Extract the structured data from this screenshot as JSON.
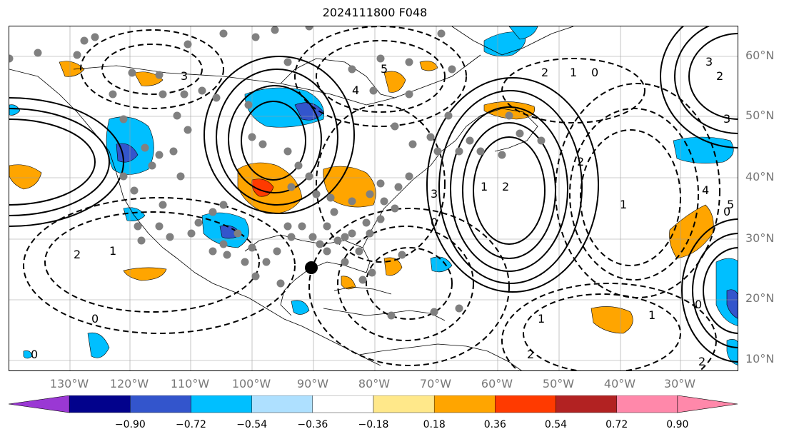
{
  "title": "2024111800 F048",
  "lat_labels": [
    "60°N",
    "50°N",
    "40°N",
    "30°N",
    "20°N",
    "10°N"
  ],
  "lon_labels": [
    "130°W",
    "120°W",
    "110°W",
    "100°W",
    "90°W",
    "80°W",
    "70°W",
    "60°W",
    "50°W",
    "40°W",
    "30°W"
  ],
  "colorbar": {
    "ticks": [
      "−0.90",
      "−0.72",
      "−0.54",
      "−0.36",
      "−0.18",
      "0.18",
      "0.36",
      "0.54",
      "0.72",
      "0.90"
    ],
    "colors": [
      "#9a38d4",
      "#02028c",
      "#3355cc",
      "#00bfff",
      "#aee0ff",
      "#ffffff",
      "#ffe88a",
      "#ffa500",
      "#ff3a00",
      "#b22222",
      "#ff88aa"
    ]
  },
  "contour_labels": [
    "2",
    "1",
    "0",
    "3",
    "4",
    "5",
    "2",
    "1",
    "0",
    "2",
    "3",
    "4",
    "5",
    "1",
    "2",
    "3",
    "0",
    "1",
    "2",
    "0",
    "0",
    "1",
    "2",
    "3",
    "0",
    "1",
    "2"
  ],
  "colors": {
    "land_outline": "#000000",
    "grid": "#9e9e9e",
    "station_dot": "#808080",
    "marker": "#000000"
  }
}
